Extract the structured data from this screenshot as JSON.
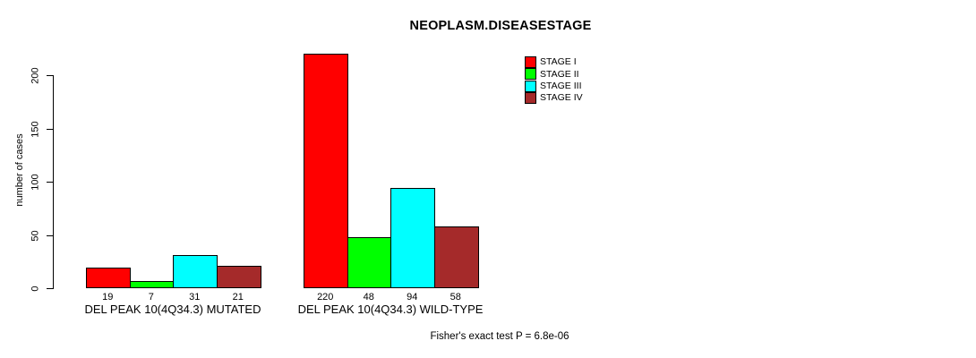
{
  "title": "NEOPLASM.DISEASESTAGE",
  "footnote": "Fisher's exact test P = 6.8e-06",
  "colors": {
    "background": "#ffffff",
    "axis": "#000000",
    "text": "#000000",
    "stage_i": "#ff0000",
    "stage_ii": "#00ff00",
    "stage_iii": "#00ffff",
    "stage_iv": "#a52a2a"
  },
  "chart_data": {
    "type": "bar",
    "title": "NEOPLASM.DISEASESTAGE",
    "xlabel": "",
    "ylabel": "number of cases",
    "ylim": [
      0,
      200
    ],
    "yticks": [
      0,
      50,
      100,
      150,
      200
    ],
    "grid": false,
    "bar_borders": "#000000",
    "legend_position": "top-right",
    "categories": [
      "DEL PEAK 10(4Q34.3) MUTATED",
      "DEL PEAK 10(4Q34.3) WILD-TYPE"
    ],
    "series": [
      {
        "name": "STAGE I",
        "color": "#ff0000",
        "values": [
          19,
          220
        ]
      },
      {
        "name": "STAGE II",
        "color": "#00ff00",
        "values": [
          7,
          48
        ]
      },
      {
        "name": "STAGE III",
        "color": "#00ffff",
        "values": [
          31,
          94
        ]
      },
      {
        "name": "STAGE IV",
        "color": "#a52a2a",
        "values": [
          21,
          58
        ]
      }
    ],
    "bar_value_labels_shown": true,
    "annotation": "Fisher's exact test P = 6.8e-06"
  }
}
